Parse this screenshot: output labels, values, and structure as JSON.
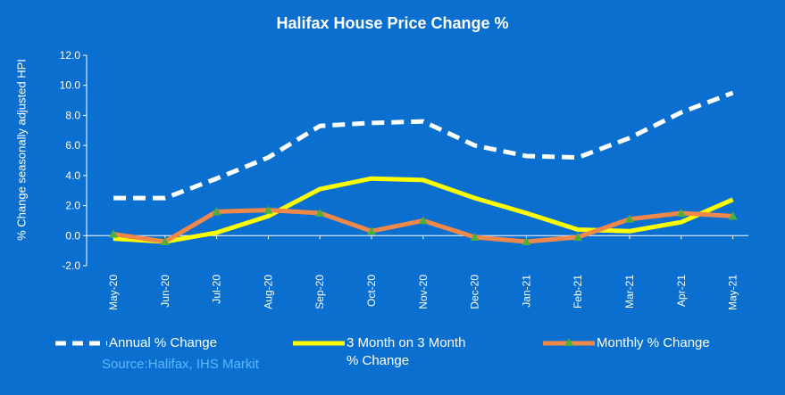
{
  "chart_data": {
    "type": "line",
    "title": "Halifax House Price Change %",
    "ylabel": "% Change seasonally adjusted HPI",
    "xlabel": "",
    "ylim": [
      -2.0,
      12.0
    ],
    "yticks": [
      "12.0",
      "10.0",
      "8.0",
      "6.0",
      "4.0",
      "2.0",
      "0.0",
      "-2.0"
    ],
    "ytick_values": [
      12,
      10,
      8,
      6,
      4,
      2,
      0,
      -2
    ],
    "categories": [
      "May-20",
      "Jun-20",
      "Jul-20",
      "Aug-20",
      "Sep-20",
      "Oct-20",
      "Nov-20",
      "Dec-20",
      "Jan-21",
      "Feb-21",
      "Mar-21",
      "Apr-21",
      "May-21"
    ],
    "grid": false,
    "legend_position": "bottom",
    "source": "Source:Halifax, IHS Markit",
    "series": [
      {
        "name": "Annual % Change",
        "color": "#ffffff",
        "style": "dashed",
        "values": [
          2.5,
          2.5,
          3.8,
          5.2,
          7.3,
          7.5,
          7.6,
          6.0,
          5.3,
          5.2,
          6.5,
          8.2,
          9.5
        ]
      },
      {
        "name": "3 Month on 3 Month % Change",
        "name_lines": [
          "3 Month on 3 Month",
          "% Change"
        ],
        "color": "#ffff00",
        "style": "solid",
        "values": [
          -0.2,
          -0.4,
          0.2,
          1.3,
          3.1,
          3.8,
          3.7,
          2.5,
          1.5,
          0.4,
          0.3,
          0.9,
          2.4
        ]
      },
      {
        "name": "Monthly % Change",
        "color": "#f0884a",
        "style": "solid",
        "marker": "triangle",
        "marker_color": "#4caf3c",
        "values": [
          0.1,
          -0.4,
          1.6,
          1.7,
          1.5,
          0.3,
          1.0,
          -0.1,
          -0.4,
          -0.1,
          1.1,
          1.5,
          1.3
        ]
      }
    ]
  }
}
